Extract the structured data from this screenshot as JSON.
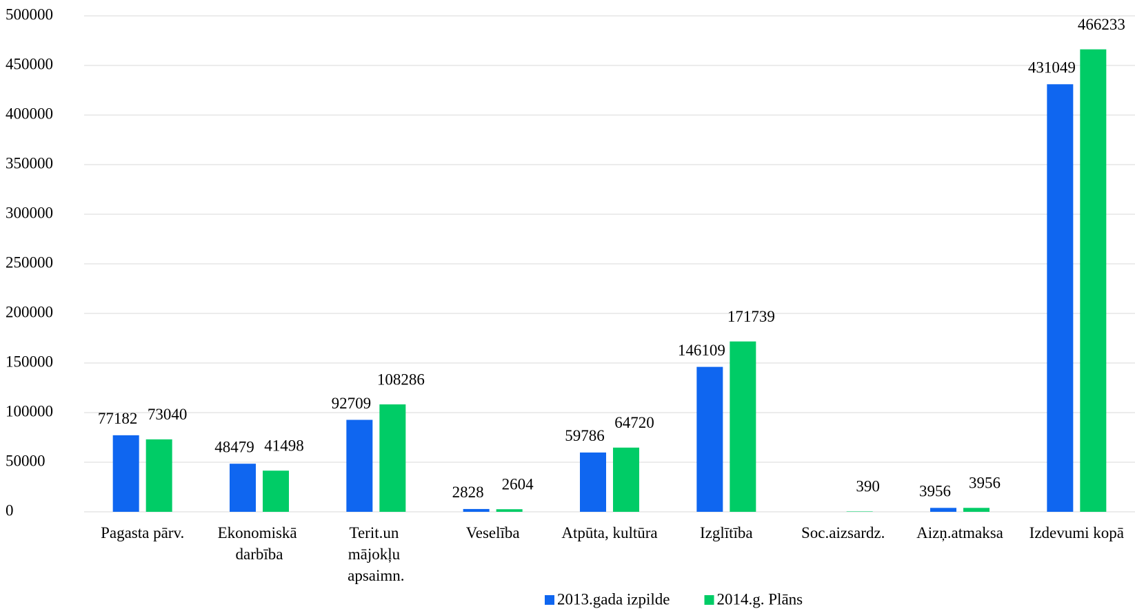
{
  "chart_data": {
    "type": "bar",
    "categories": [
      "Pagasta pārv.",
      "Ekonomiskā darbība",
      "Terit.un mājokļu apsaimn.",
      "Veselība",
      "Atpūta, kultūra",
      "Izglītība",
      "Soc.aizsardz.",
      "Aizņ.atmaksa",
      "Izdevumi kopā"
    ],
    "series": [
      {
        "name": "2013.gada izpilde",
        "color": "#0f66f0",
        "values": [
          77182,
          48479,
          92709,
          2828,
          59786,
          146109,
          null,
          3956,
          431049
        ]
      },
      {
        "name": "2014.g. Plāns",
        "color": "#00cc66",
        "values": [
          73040,
          41498,
          108286,
          2604,
          64720,
          171739,
          390,
          3956,
          466233
        ]
      }
    ],
    "ylim": [
      0,
      500000
    ],
    "yticks": [
      0,
      50000,
      100000,
      150000,
      200000,
      250000,
      300000,
      350000,
      400000,
      450000,
      500000
    ],
    "grid": true,
    "legend": "bottom"
  }
}
